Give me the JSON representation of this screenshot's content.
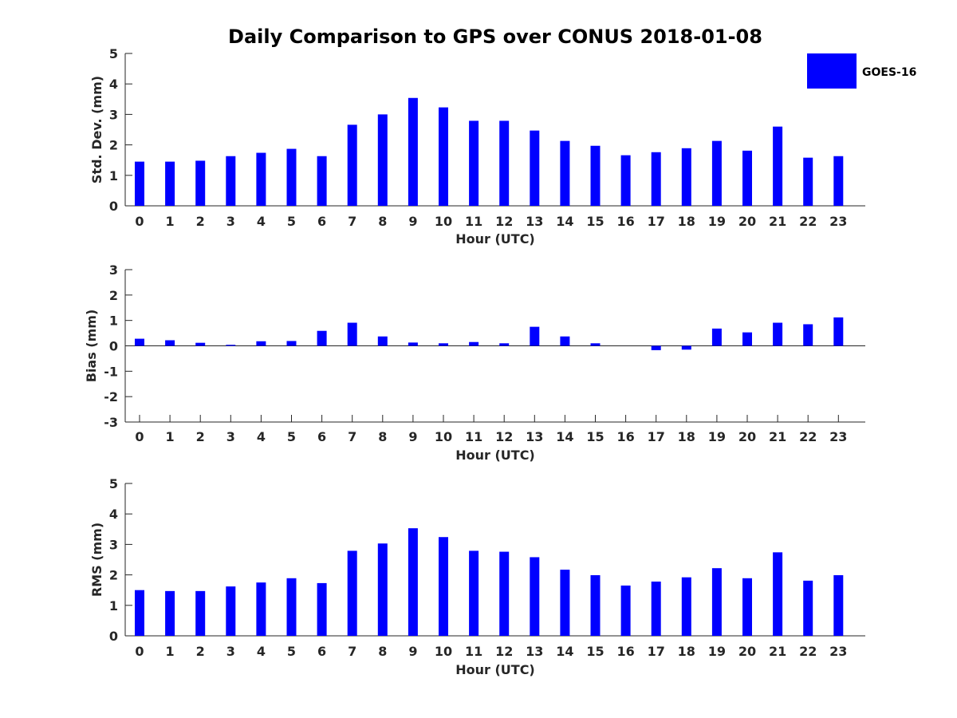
{
  "chart_data": [
    {
      "type": "bar",
      "title": "Daily Comparison to GPS over CONUS 2018-01-08",
      "xlabel": "Hour (UTC)",
      "ylabel": "Std. Dev. (mm)",
      "ylim": [
        0,
        5
      ],
      "yticks": [
        "0",
        "1",
        "2",
        "3",
        "4",
        "5"
      ],
      "categories": [
        "0",
        "1",
        "2",
        "3",
        "4",
        "5",
        "6",
        "7",
        "8",
        "9",
        "10",
        "11",
        "12",
        "13",
        "14",
        "15",
        "16",
        "17",
        "18",
        "19",
        "20",
        "21",
        "22",
        "23"
      ],
      "series": [
        {
          "name": "GOES-16",
          "color": "#0000ff",
          "values": [
            1.45,
            1.45,
            1.48,
            1.63,
            1.74,
            1.87,
            1.63,
            2.66,
            3.0,
            3.54,
            3.23,
            2.79,
            2.79,
            2.47,
            2.13,
            1.97,
            1.66,
            1.76,
            1.89,
            2.13,
            1.81,
            2.6,
            1.58,
            1.63
          ]
        }
      ],
      "legend": {
        "location": "top-right",
        "entries": [
          "GOES-16"
        ]
      }
    },
    {
      "type": "bar",
      "xlabel": "Hour (UTC)",
      "ylabel": "Bias (mm)",
      "ylim": [
        -3,
        3
      ],
      "yticks": [
        "-3",
        "-2",
        "-1",
        "0",
        "1",
        "2",
        "3"
      ],
      "categories": [
        "0",
        "1",
        "2",
        "3",
        "4",
        "5",
        "6",
        "7",
        "8",
        "9",
        "10",
        "11",
        "12",
        "13",
        "14",
        "15",
        "16",
        "17",
        "18",
        "19",
        "20",
        "21",
        "22",
        "23"
      ],
      "series": [
        {
          "name": "GOES-16",
          "color": "#0000ff",
          "values": [
            0.28,
            0.22,
            0.12,
            0.04,
            0.18,
            0.19,
            0.59,
            0.91,
            0.37,
            0.13,
            0.1,
            0.15,
            0.1,
            0.75,
            0.37,
            0.1,
            0.0,
            -0.17,
            -0.15,
            0.68,
            0.53,
            0.91,
            0.85,
            1.12
          ]
        }
      ]
    },
    {
      "type": "bar",
      "xlabel": "Hour (UTC)",
      "ylabel": "RMS (mm)",
      "ylim": [
        0,
        5
      ],
      "yticks": [
        "0",
        "1",
        "2",
        "3",
        "4",
        "5"
      ],
      "categories": [
        "0",
        "1",
        "2",
        "3",
        "4",
        "5",
        "6",
        "7",
        "8",
        "9",
        "10",
        "11",
        "12",
        "13",
        "14",
        "15",
        "16",
        "17",
        "18",
        "19",
        "20",
        "21",
        "22",
        "23"
      ],
      "series": [
        {
          "name": "GOES-16",
          "color": "#0000ff",
          "values": [
            1.5,
            1.47,
            1.47,
            1.62,
            1.75,
            1.89,
            1.73,
            2.79,
            3.03,
            3.53,
            3.24,
            2.79,
            2.76,
            2.58,
            2.17,
            1.99,
            1.65,
            1.78,
            1.92,
            2.22,
            1.89,
            2.74,
            1.81,
            1.99
          ]
        }
      ]
    }
  ]
}
